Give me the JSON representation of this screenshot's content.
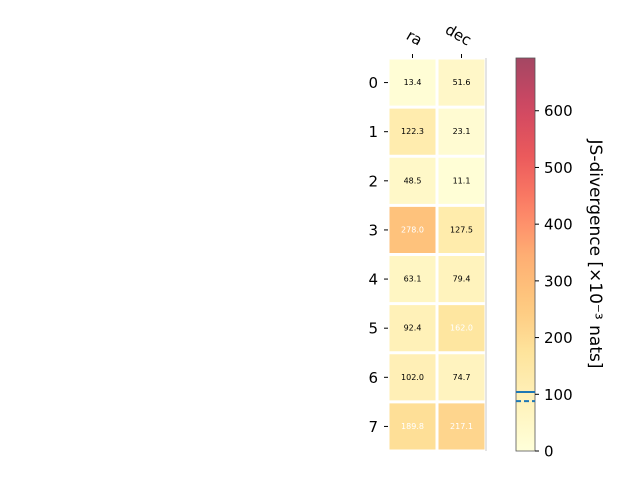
{
  "chart_data": {
    "type": "heatmap",
    "columns": [
      "ra",
      "dec"
    ],
    "rows": [
      "0",
      "1",
      "2",
      "3",
      "4",
      "5",
      "6",
      "7"
    ],
    "values": [
      [
        13.4,
        51.6
      ],
      [
        122.3,
        23.1
      ],
      [
        48.5,
        11.1
      ],
      [
        278.0,
        127.5
      ],
      [
        63.1,
        79.4
      ],
      [
        92.4,
        162.0
      ],
      [
        102.0,
        74.7
      ],
      [
        189.8,
        217.1
      ]
    ],
    "value_labels": [
      [
        "13.4",
        "51.6"
      ],
      [
        "122.3",
        "23.1"
      ],
      [
        "48.5",
        "11.1"
      ],
      [
        "278.0",
        "127.5"
      ],
      [
        "63.1",
        "79.4"
      ],
      [
        "92.4",
        "162.0"
      ],
      [
        "102.0",
        "74.7"
      ],
      [
        "189.8",
        "217.1"
      ]
    ],
    "colorbar": {
      "label": "JS-divergence [×10⁻³ nats]",
      "range": [
        0,
        693
      ],
      "ticks": [
        0,
        100,
        200,
        300,
        400,
        500,
        600
      ],
      "tick_labels": [
        "0",
        "100",
        "200",
        "300",
        "400",
        "500",
        "600"
      ],
      "colormap": "YlOrRd",
      "reference_lines": [
        {
          "value": 104,
          "style": "solid"
        },
        {
          "value": 88,
          "style": "dashed"
        }
      ],
      "reference_line_color": "#1f77b4"
    },
    "grid": false
  }
}
